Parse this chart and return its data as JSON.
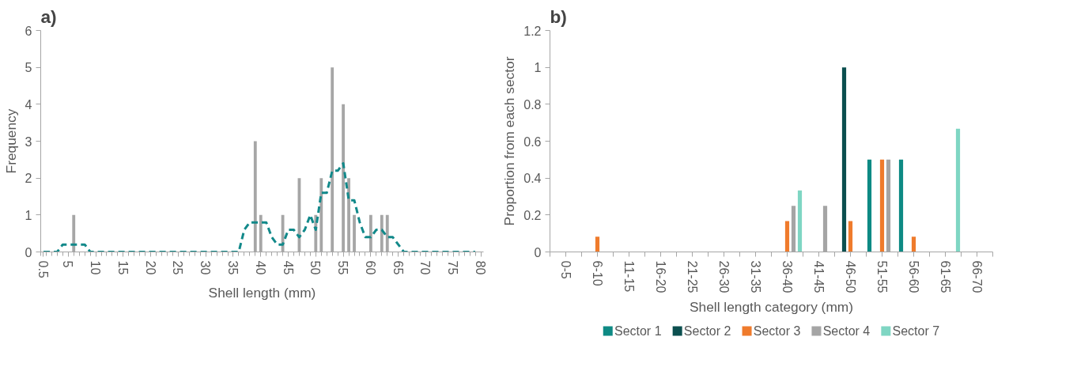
{
  "chart_data": [
    {
      "type": "bar",
      "title": "a)",
      "xlabel": "Shell length (mm)",
      "ylabel": "Frequency",
      "xlim": [
        0,
        80.5
      ],
      "ylim": [
        0,
        6
      ],
      "yticks": [
        0,
        1,
        2,
        3,
        4,
        5,
        6
      ],
      "xticks": [
        0.5,
        5,
        10,
        15,
        20,
        25,
        30,
        35,
        40,
        45,
        50,
        55,
        60,
        65,
        70,
        75,
        80
      ],
      "grid": false,
      "series": [
        {
          "type": "bar",
          "color": "#a6a6a6",
          "x": [
            6,
            39,
            40,
            44,
            47,
            50,
            51,
            53,
            55,
            56,
            57,
            60,
            62,
            63
          ],
          "values": [
            1,
            3,
            1,
            1,
            2,
            1,
            2,
            5,
            4,
            2,
            1,
            1,
            1,
            1
          ]
        },
        {
          "type": "line",
          "color": "#12898a",
          "line_style": "dashed",
          "x": [
            0.5,
            1,
            2,
            3,
            4,
            5,
            6,
            7,
            8,
            9,
            10,
            15,
            20,
            25,
            30,
            35,
            36,
            37,
            38,
            39,
            40,
            41,
            42,
            43,
            44,
            45,
            46,
            47,
            48,
            49,
            50,
            51,
            52,
            53,
            54,
            55,
            56,
            57,
            58,
            59,
            60,
            61,
            62,
            63,
            64,
            65,
            66,
            70,
            75,
            79
          ],
          "values": [
            0,
            0,
            0,
            0,
            0.2,
            0.2,
            0.2,
            0.2,
            0.2,
            0,
            0,
            0,
            0,
            0,
            0,
            0,
            0,
            0.6,
            0.8,
            0.8,
            0.8,
            0.8,
            0.4,
            0.2,
            0.2,
            0.6,
            0.6,
            0.4,
            0.6,
            1.0,
            0.6,
            1.6,
            1.6,
            2.2,
            2.2,
            2.4,
            1.4,
            1.4,
            0.8,
            0.4,
            0.4,
            0.6,
            0.6,
            0.4,
            0.4,
            0.2,
            0,
            0,
            0,
            0
          ]
        }
      ]
    },
    {
      "type": "bar",
      "title": "b)",
      "xlabel": "Shell length category (mm)",
      "ylabel": "Proportion from each sector",
      "categories": [
        "0-5",
        "6-10",
        "11-15",
        "16-20",
        "21-25",
        "26-30",
        "31-35",
        "36-40",
        "41-45",
        "46-50",
        "51-55",
        "56-60",
        "61-65",
        "66-70"
      ],
      "ylim": [
        0,
        1.2
      ],
      "yticks": [
        0,
        {
          "value": 0.2,
          "label": "0.2"
        },
        {
          "value": 0.4,
          "label": "0.4"
        },
        {
          "value": 0.6,
          "label": "0.6"
        },
        {
          "value": 0.8,
          "label": "0.8"
        },
        1,
        {
          "value": 1.2,
          "label": "1.2"
        }
      ],
      "grid": false,
      "legend": "bottom",
      "series": [
        {
          "name": "Sector 1",
          "color": "#0e8a84",
          "values": [
            0,
            0,
            0,
            0,
            0,
            0,
            0,
            0,
            0,
            0,
            0.5,
            0.5,
            0,
            0
          ]
        },
        {
          "name": "Sector 2",
          "color": "#0b4f4f",
          "values": [
            0,
            0,
            0,
            0,
            0,
            0,
            0,
            0,
            0,
            1.0,
            0,
            0,
            0,
            0
          ]
        },
        {
          "name": "Sector 3",
          "color": "#ef7b2c",
          "values": [
            0,
            0.083,
            0,
            0,
            0,
            0,
            0,
            0.167,
            0,
            0.167,
            0.5,
            0.083,
            0,
            0
          ]
        },
        {
          "name": "Sector 4",
          "color": "#a5a5a5",
          "values": [
            0,
            0,
            0,
            0,
            0,
            0,
            0,
            0.25,
            0.25,
            0,
            0.5,
            0,
            0,
            0
          ]
        },
        {
          "name": "Sector 7",
          "color": "#7fd6c3",
          "values": [
            0,
            0,
            0,
            0,
            0,
            0,
            0,
            0.333,
            0,
            0,
            0,
            0,
            0.667,
            0
          ]
        }
      ]
    }
  ]
}
